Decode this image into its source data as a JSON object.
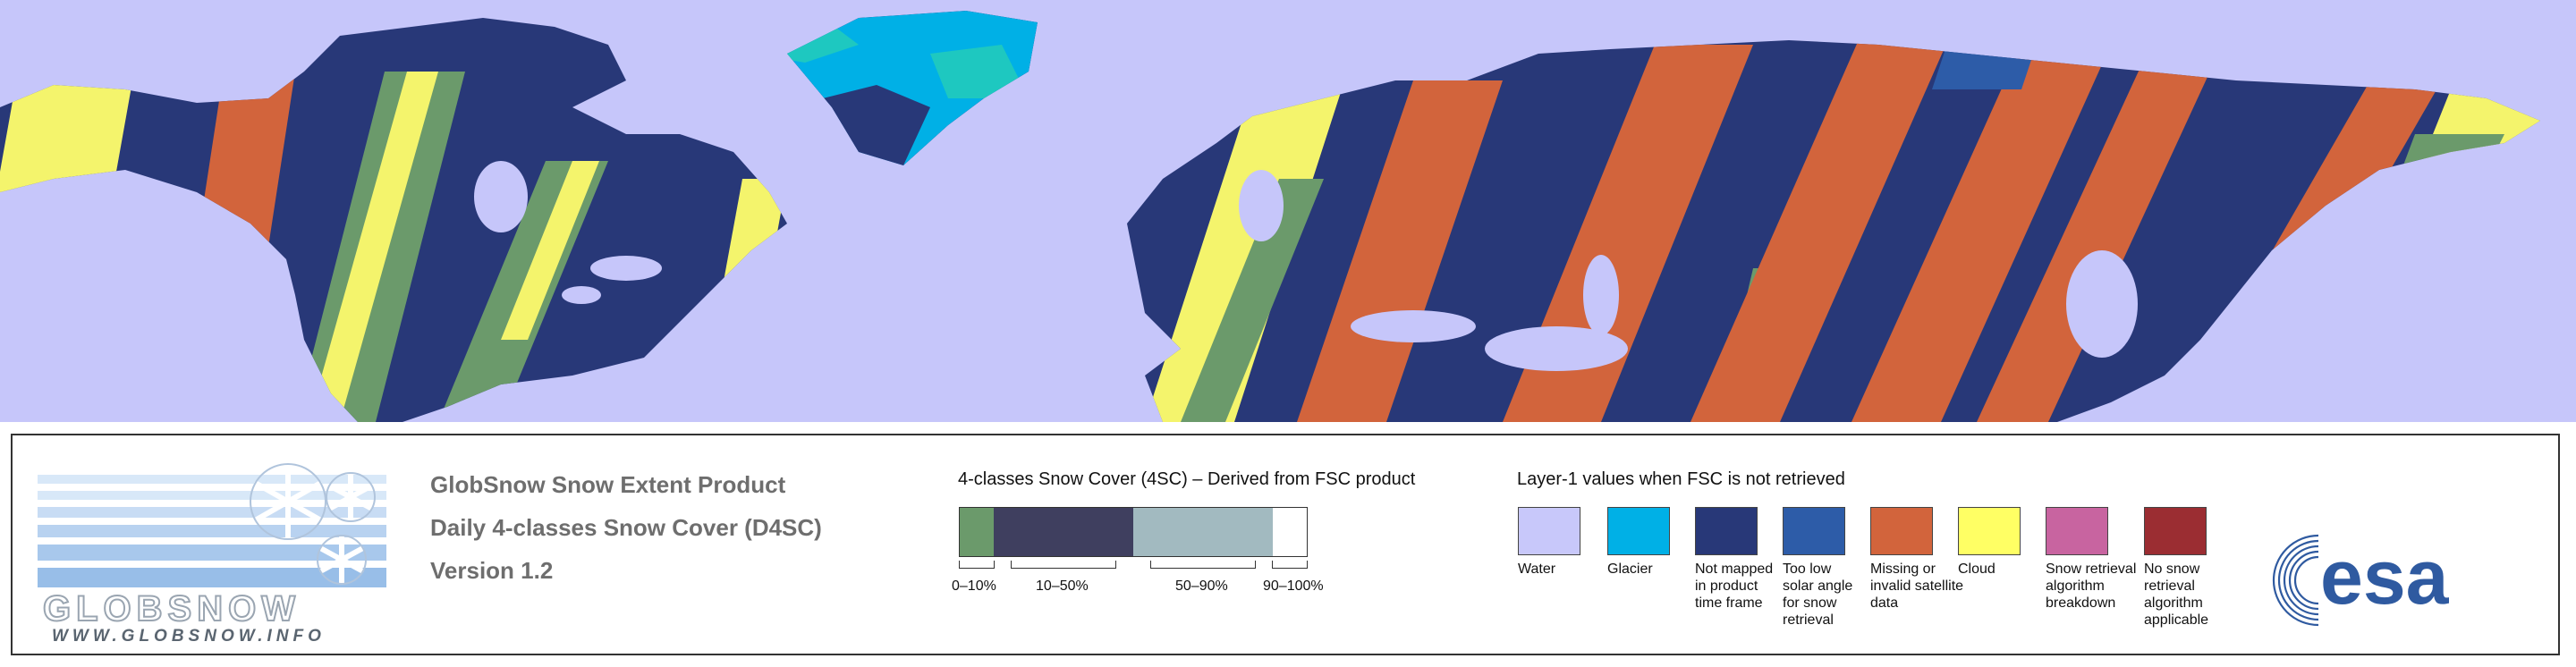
{
  "product": {
    "title": "GlobSnow Snow Extent Product",
    "subtitle": "Daily 4-classes Snow Cover (D4SC)",
    "version": "Version 1.2"
  },
  "logo": {
    "wordmark": "GLOBSNOW",
    "url": "WWW.GLOBSNOW.INFO"
  },
  "scale": {
    "title": "4-classes Snow Cover (4SC) – Derived from FSC product",
    "classes": [
      {
        "label": "0–10%",
        "color": "#6b9a6b"
      },
      {
        "label": "10–50%",
        "color": "#3f3f5f"
      },
      {
        "label": "50–90%",
        "color": "#a2bac0"
      },
      {
        "label": "90–100%",
        "color": "#ffffff"
      }
    ]
  },
  "layer1": {
    "title": "Layer-1 values when FSC is not retrieved",
    "items": [
      {
        "label": "Water",
        "color": "#c8c8fa"
      },
      {
        "label": "Glacier",
        "color": "#00b0e6"
      },
      {
        "label": "Not mapped in product time frame",
        "color": "#283878"
      },
      {
        "label": "Too low solar angle for snow retrieval",
        "color": "#2d5ca8"
      },
      {
        "label": "Missing or invalid satellite data",
        "color": "#d2643c"
      },
      {
        "label": "Cloud",
        "color": "#ffff64"
      },
      {
        "label": "Snow retrieval algorithm breakdown",
        "color": "#c864a0"
      },
      {
        "label": "No snow retrieval algorithm applicable",
        "color": "#9b2d32"
      }
    ]
  },
  "esa_logo": {
    "text": "esa"
  },
  "map_colors": {
    "water": "#c6c6fa",
    "land_not_mapped": "#283878",
    "missing": "#d2643c",
    "cloud": "#f4f46c",
    "snow_low": "#6b9a6b",
    "glacier": "#00b0e6",
    "snow_high": "#1ec8c0"
  }
}
